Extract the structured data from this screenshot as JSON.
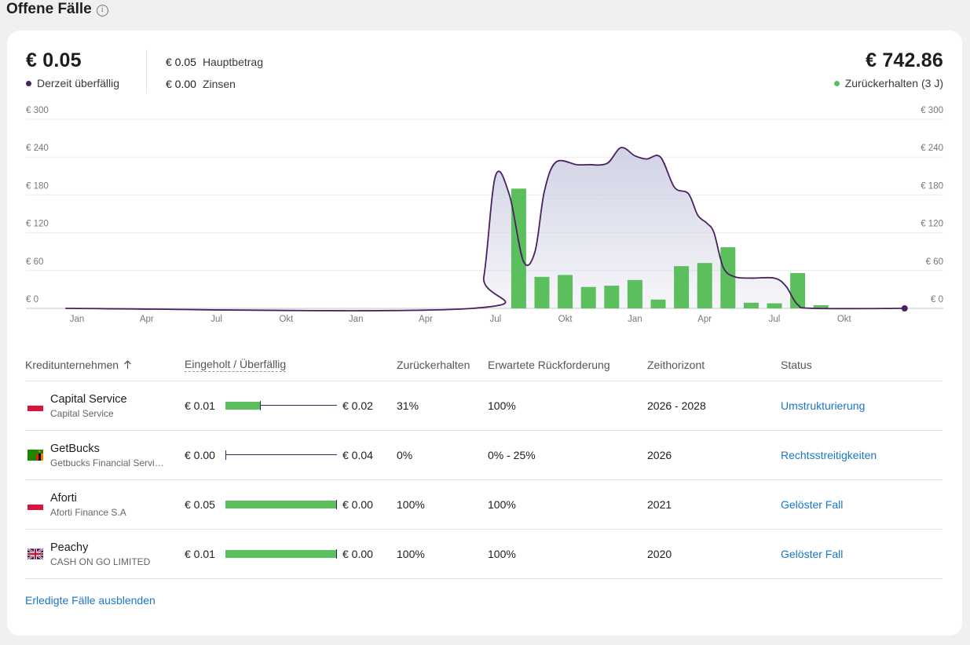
{
  "title": "Offene Fälle",
  "summary": {
    "overdue_amount": "€ 0.05",
    "overdue_label": "Derzeit überfällig",
    "principal_amount": "€ 0.05",
    "principal_label": "Hauptbetrag",
    "interest_amount": "€ 0.00",
    "interest_label": "Zinsen",
    "recovered_amount": "€ 742.86",
    "recovered_label": "Zurückerhalten (3 J)",
    "colors": {
      "overdue": "#4a2060",
      "recovered": "#5bbf5e"
    }
  },
  "chart_data": {
    "type": "bar",
    "y_ticks": [
      "€ 300",
      "€ 240",
      "€ 180",
      "€ 120",
      "€ 60",
      "€ 0"
    ],
    "ylim": [
      0,
      300
    ],
    "x_tick_labels": [
      "Jan",
      "Apr",
      "Jul",
      "Okt",
      "Jan",
      "Apr",
      "Jul",
      "Okt",
      "Jan",
      "Apr",
      "Jul",
      "Okt"
    ],
    "x_tick_months": [
      0,
      3,
      6,
      9,
      12,
      15,
      18,
      21,
      24,
      27,
      30,
      33
    ],
    "bars": [
      {
        "month": 19,
        "value": 190
      },
      {
        "month": 20,
        "value": 50
      },
      {
        "month": 21,
        "value": 53
      },
      {
        "month": 22,
        "value": 34
      },
      {
        "month": 23,
        "value": 36
      },
      {
        "month": 24,
        "value": 45
      },
      {
        "month": 25,
        "value": 14
      },
      {
        "month": 26,
        "value": 67
      },
      {
        "month": 27,
        "value": 72
      },
      {
        "month": 28,
        "value": 97
      },
      {
        "month": 29,
        "value": 9
      },
      {
        "month": 30,
        "value": 8
      },
      {
        "month": 31,
        "value": 56
      },
      {
        "month": 32,
        "value": 5
      }
    ],
    "line": [
      {
        "month": -0.5,
        "value": 0
      },
      {
        "month": 17,
        "value": 0
      },
      {
        "month": 17.5,
        "value": 50
      },
      {
        "month": 18,
        "value": 210
      },
      {
        "month": 18.6,
        "value": 180
      },
      {
        "month": 19.2,
        "value": 75
      },
      {
        "month": 19.7,
        "value": 90
      },
      {
        "month": 20.1,
        "value": 185
      },
      {
        "month": 20.6,
        "value": 232
      },
      {
        "month": 21.5,
        "value": 228
      },
      {
        "month": 22,
        "value": 228
      },
      {
        "month": 22.8,
        "value": 230
      },
      {
        "month": 23.4,
        "value": 255
      },
      {
        "month": 24,
        "value": 242
      },
      {
        "month": 24.5,
        "value": 237
      },
      {
        "month": 25.1,
        "value": 240
      },
      {
        "month": 25.7,
        "value": 192
      },
      {
        "month": 26.3,
        "value": 182
      },
      {
        "month": 26.7,
        "value": 148
      },
      {
        "month": 27.1,
        "value": 135
      },
      {
        "month": 27.4,
        "value": 120
      },
      {
        "month": 27.8,
        "value": 65
      },
      {
        "month": 28.3,
        "value": 50
      },
      {
        "month": 29,
        "value": 48
      },
      {
        "month": 30,
        "value": 48
      },
      {
        "month": 30.5,
        "value": 35
      },
      {
        "month": 31,
        "value": 6
      },
      {
        "month": 31.7,
        "value": 0
      },
      {
        "month": 35.6,
        "value": 0
      }
    ],
    "grid": true,
    "colors": {
      "bars": "#5bbf5e",
      "line": "#4a2060",
      "area": "#c9cbe0"
    }
  },
  "table": {
    "headers": {
      "creditor": "Kreditunternehmen",
      "collected": "Eingeholt / Überfällig",
      "recovered": "Zurückerhalten",
      "expected": "Erwartete Rückforderung",
      "horizon": "Zeithorizont",
      "status": "Status"
    },
    "rows": [
      {
        "name": "Capital Service",
        "sub": "Capital Service",
        "flag": "pl",
        "collected": "€ 0.01",
        "overdue": "€ 0.02",
        "ratio": 0.31,
        "recovered": "31%",
        "expected": "100%",
        "horizon": "2026 - 2028",
        "status": "Umstrukturierung"
      },
      {
        "name": "GetBucks",
        "sub": "Getbucks Financial Servi…",
        "flag": "zm",
        "collected": "€ 0.00",
        "overdue": "€ 0.04",
        "ratio": 0.0,
        "recovered": "0%",
        "expected": "0% - 25%",
        "horizon": "2026",
        "status": "Rechtsstreitigkeiten"
      },
      {
        "name": "Aforti",
        "sub": "Aforti Finance S.A",
        "flag": "pl",
        "collected": "€ 0.05",
        "overdue": "€ 0.00",
        "ratio": 1.0,
        "recovered": "100%",
        "expected": "100%",
        "horizon": "2021",
        "status": "Gelöster Fall"
      },
      {
        "name": "Peachy",
        "sub": "CASH ON GO LIMITED",
        "flag": "gb",
        "collected": "€ 0.01",
        "overdue": "€ 0.00",
        "ratio": 1.0,
        "recovered": "100%",
        "expected": "100%",
        "horizon": "2020",
        "status": "Gelöster Fall"
      }
    ]
  },
  "footer_link": "Erledigte Fälle ausblenden"
}
